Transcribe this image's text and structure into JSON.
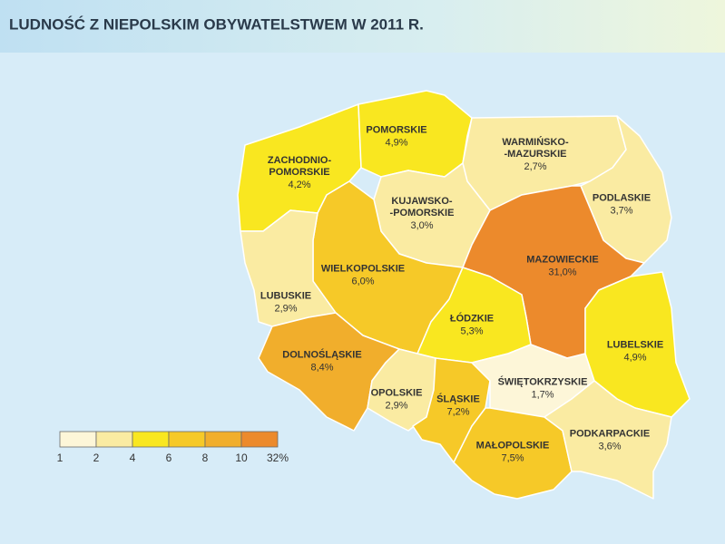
{
  "title": "LUDNOŚĆ Z NIEPOLSKIM OBYWATELSTWEM W 2011 R.",
  "regions": [
    {
      "name": [
        "ZACHODNIO-",
        "POMORSKIE"
      ],
      "value": 4.2,
      "value_label": "4,2%"
    },
    {
      "name": [
        "POMORSKIE"
      ],
      "value": 4.9,
      "value_label": "4,9%"
    },
    {
      "name": [
        "WARMIŃSKO-",
        "-MAZURSKIE"
      ],
      "value": 2.7,
      "value_label": "2,7%"
    },
    {
      "name": [
        "PODLASKIE"
      ],
      "value": 3.7,
      "value_label": "3,7%"
    },
    {
      "name": [
        "KUJAWSKO-",
        "-POMORSKIE"
      ],
      "value": 3.0,
      "value_label": "3,0%"
    },
    {
      "name": [
        "WIELKOPOLSKIE"
      ],
      "value": 6.0,
      "value_label": "6,0%"
    },
    {
      "name": [
        "LUBUSKIE"
      ],
      "value": 2.9,
      "value_label": "2,9%"
    },
    {
      "name": [
        "MAZOWIECKIE"
      ],
      "value": 31.0,
      "value_label": "31,0%"
    },
    {
      "name": [
        "ŁÓDZKIE"
      ],
      "value": 5.3,
      "value_label": "5,3%"
    },
    {
      "name": [
        "DOLNOŚLĄSKIE"
      ],
      "value": 8.4,
      "value_label": "8,4%"
    },
    {
      "name": [
        "OPOLSKIE"
      ],
      "value": 2.9,
      "value_label": "2,9%"
    },
    {
      "name": [
        "ŚLĄSKIE"
      ],
      "value": 7.2,
      "value_label": "7,2%"
    },
    {
      "name": [
        "ŚWIĘTOKRZYSKIE"
      ],
      "value": 1.7,
      "value_label": "1,7%"
    },
    {
      "name": [
        "LUBELSKIE"
      ],
      "value": 4.9,
      "value_label": "4,9%"
    },
    {
      "name": [
        "MAŁOPOLSKIE"
      ],
      "value": 7.5,
      "value_label": "7,5%"
    },
    {
      "name": [
        "PODKARPACKIE"
      ],
      "value": 3.6,
      "value_label": "3,6%"
    }
  ],
  "legend": {
    "breaks": [
      1,
      2,
      4,
      6,
      8,
      10,
      {
        "value": 32,
        "label": "32%"
      }
    ],
    "colors": [
      "#fdf6d8",
      "#faeba2",
      "#f9e720",
      "#f6c928",
      "#f1ae2c",
      "#ec8a2c"
    ]
  }
}
